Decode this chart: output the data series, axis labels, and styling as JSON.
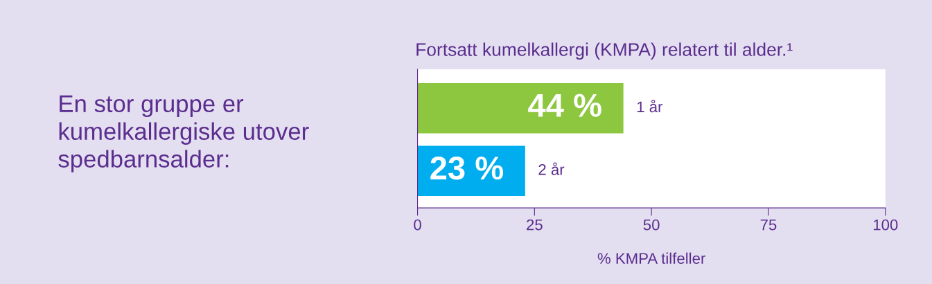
{
  "chart_data": {
    "type": "bar",
    "orientation": "horizontal",
    "title": "Fortsatt kumelkallergi (KMPA) relatert til alder.¹",
    "xlabel": "% KMPA tilfeller",
    "annotations": [
      "En stor gruppe er kumelkallergiske utover spedbarnsalder:"
    ],
    "categories": [
      "1 år",
      "2 år"
    ],
    "values": [
      44,
      23
    ],
    "colors": [
      "#8dc63f",
      "#00aeef"
    ],
    "value_labels": [
      "44 %",
      "23 %"
    ],
    "xlim": [
      0,
      100
    ],
    "xticks": [
      0,
      25,
      50,
      75,
      100
    ],
    "grid": false,
    "legend": false
  }
}
